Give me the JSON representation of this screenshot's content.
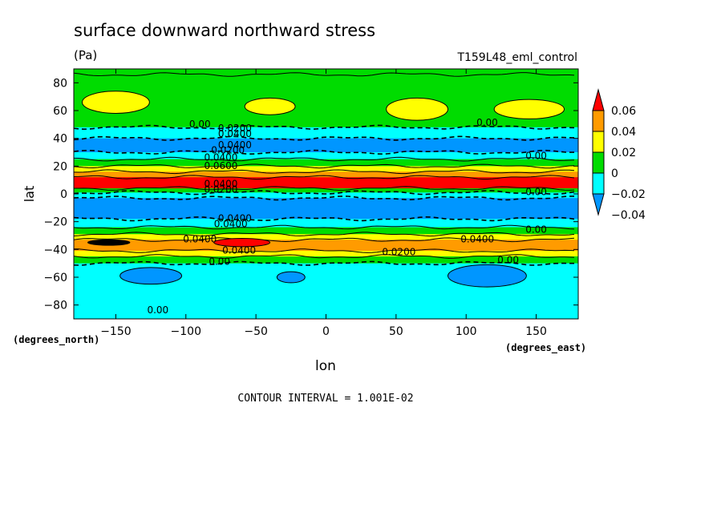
{
  "chart_data": {
    "type": "heatmap",
    "title": "surface downward northward stress",
    "units": "(Pa)",
    "run_label": "T159L48_eml_control",
    "xlabel": "lon",
    "ylabel": "lat",
    "xunits": "(degrees_east)",
    "yunits": "(degrees_north)",
    "xlim": [
      -180,
      180
    ],
    "ylim": [
      -90,
      90
    ],
    "xticks": [
      -150,
      -100,
      -50,
      0,
      50,
      100,
      150
    ],
    "yticks": [
      -80,
      -60,
      -40,
      -20,
      0,
      20,
      40,
      60,
      80
    ],
    "contour_interval_text": "CONTOUR INTERVAL = 1.001E-02",
    "colorbar": {
      "levels": [
        "0.06",
        "0.04",
        "0.02",
        "0",
        "−0.02",
        "−0.04"
      ],
      "colors": [
        "#ff0000",
        "#ff9b00",
        "#ffff00",
        "#00dc00",
        "#00ffff",
        "#0096ff"
      ]
    },
    "zonal_bands": [
      {
        "lat_top": 90,
        "lat_bottom": 86,
        "level": "0 to 0.02"
      },
      {
        "lat_top": 86,
        "lat_bottom": 48,
        "level": "0 to 0.02"
      },
      {
        "lat_top": 48,
        "lat_bottom": 40,
        "level": "-0.02 to 0"
      },
      {
        "lat_top": 40,
        "lat_bottom": 30,
        "level": "< -0.02"
      },
      {
        "lat_top": 30,
        "lat_bottom": 25,
        "level": "-0.02 to 0"
      },
      {
        "lat_top": 25,
        "lat_bottom": 20,
        "level": "0 to 0.02"
      },
      {
        "lat_top": 20,
        "lat_bottom": 16,
        "level": "0.02 to 0.04"
      },
      {
        "lat_top": 16,
        "lat_bottom": 12,
        "level": "0.04 to 0.06"
      },
      {
        "lat_top": 12,
        "lat_bottom": 4,
        "level": "> 0.06"
      },
      {
        "lat_top": 4,
        "lat_bottom": 1,
        "level": "0 to 0.02"
      },
      {
        "lat_top": 1,
        "lat_bottom": -3,
        "level": "-0.02 to 0"
      },
      {
        "lat_top": -3,
        "lat_bottom": -18,
        "level": "< -0.02"
      },
      {
        "lat_top": -18,
        "lat_bottom": -24,
        "level": "-0.02 to 0"
      },
      {
        "lat_top": -24,
        "lat_bottom": -29,
        "level": "0 to 0.02"
      },
      {
        "lat_top": -29,
        "lat_bottom": -33,
        "level": "0.02 to 0.04"
      },
      {
        "lat_top": -33,
        "lat_bottom": -41,
        "level": "0.04 to 0.06"
      },
      {
        "lat_top": -41,
        "lat_bottom": -45,
        "level": "0.02 to 0.04"
      },
      {
        "lat_top": -45,
        "lat_bottom": -50,
        "level": "0 to 0.02"
      },
      {
        "lat_top": -50,
        "lat_bottom": -90,
        "level": "-0.02 to 0"
      }
    ],
    "contour_labels": [
      {
        "text": "0.00",
        "lon": -90,
        "lat": 48
      },
      {
        "text": "0.0200",
        "lon": -65,
        "lat": 45
      },
      {
        "text": "0.0400",
        "lon": -65,
        "lat": 41
      },
      {
        "text": "0.0400",
        "lon": -65,
        "lat": 33
      },
      {
        "text": "0.0200",
        "lon": -70,
        "lat": 29
      },
      {
        "text": "0.0400",
        "lon": -75,
        "lat": 24
      },
      {
        "text": "0.0600",
        "lon": -75,
        "lat": 18
      },
      {
        "text": "0.0400",
        "lon": -75,
        "lat": 5
      },
      {
        "text": "0.0200",
        "lon": -75,
        "lat": 1
      },
      {
        "text": "0.0400",
        "lon": -65,
        "lat": -20
      },
      {
        "text": "0.0400",
        "lon": -68,
        "lat": -24
      },
      {
        "text": "0.0400",
        "lon": -90,
        "lat": -35
      },
      {
        "text": "0.0400",
        "lon": -62,
        "lat": -43
      },
      {
        "text": "0.00",
        "lon": -76,
        "lat": -51
      },
      {
        "text": "0.0200",
        "lon": 52,
        "lat": -44
      },
      {
        "text": "0.0400",
        "lon": 108,
        "lat": -35
      },
      {
        "text": "0.00",
        "lon": 115,
        "lat": 49
      },
      {
        "text": "0.00",
        "lon": 150,
        "lat": 25
      },
      {
        "text": "0.00",
        "lon": 150,
        "lat": -1
      },
      {
        "text": "0.00",
        "lon": 150,
        "lat": -28
      },
      {
        "text": "0.00",
        "lon": 130,
        "lat": -50
      },
      {
        "text": "0.00",
        "lon": -120,
        "lat": -86
      }
    ]
  }
}
